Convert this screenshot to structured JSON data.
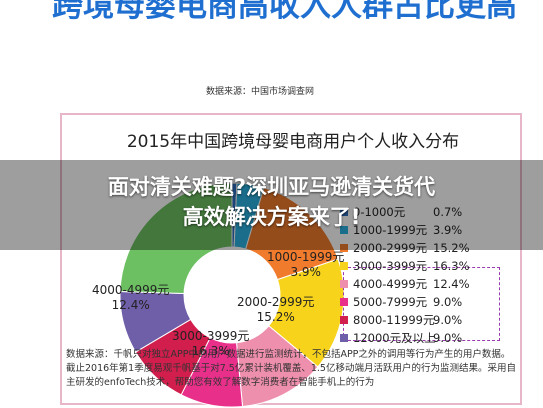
{
  "headline": "跨境母婴电商高收入人群占比更高",
  "source_top": "数据来源：中国市场调查网",
  "chart_data": {
    "type": "pie",
    "title": "2015年中国跨境母婴电商用户个人收入分布",
    "unit": "%",
    "slices": [
      {
        "label": "0-1000元",
        "value": 0.7,
        "color": "#2e6fc0",
        "display": "0.7%"
      },
      {
        "label": "1000-1999元",
        "value": 3.9,
        "color": "#2ab0e0",
        "display": "3.9%",
        "pie_label": "1000-1999元",
        "pie_value": "3.9%"
      },
      {
        "label": "2000-2999元",
        "value": 15.2,
        "color": "#f07b2c",
        "display": "15.2%",
        "pie_label": "2000-2999元",
        "pie_value": "15.2%"
      },
      {
        "label": "3000-3999元",
        "value": 16.3,
        "color": "#f7d31c",
        "display": "16.3%",
        "pie_label": "3000-3999元",
        "pie_value": "16.3%"
      },
      {
        "label": "4000-4999元",
        "value": 12.4,
        "color": "#ef8fae",
        "display": "12.4%",
        "pie_label": "4000-4999元",
        "pie_value": "12.4%"
      },
      {
        "label": "5000-7999元",
        "value": 9.0,
        "color": "#e8308a",
        "display": "9.0%"
      },
      {
        "label": "8000-11999元",
        "value": 9.0,
        "color": "#d21e4d",
        "display": "9.0%"
      },
      {
        "label": "12000元及以上",
        "value": 9.0,
        "color": "#6f5ea8",
        "display": "9.0%"
      },
      {
        "label": "",
        "value": 24.5,
        "color": "#6cc062",
        "display": ""
      }
    ],
    "legend_placement": "right"
  },
  "footnote": "数据来源：千帆只对独立APP中的用户数据进行监测统计，不包括APP之外的调用等行为产生的用户数据。截止2016年第1季度易观千帆基于对7.5亿累计装机覆盖、1.5亿移动端月活跃用户的行为监测结果。采用自主研发的enfoTech技术，帮助您有效了解数字消费者在智能手机上的行为",
  "overlay": {
    "line1": "面对清关难题?深圳亚马逊清关货代",
    "line2": "高效解决方案来了!"
  }
}
